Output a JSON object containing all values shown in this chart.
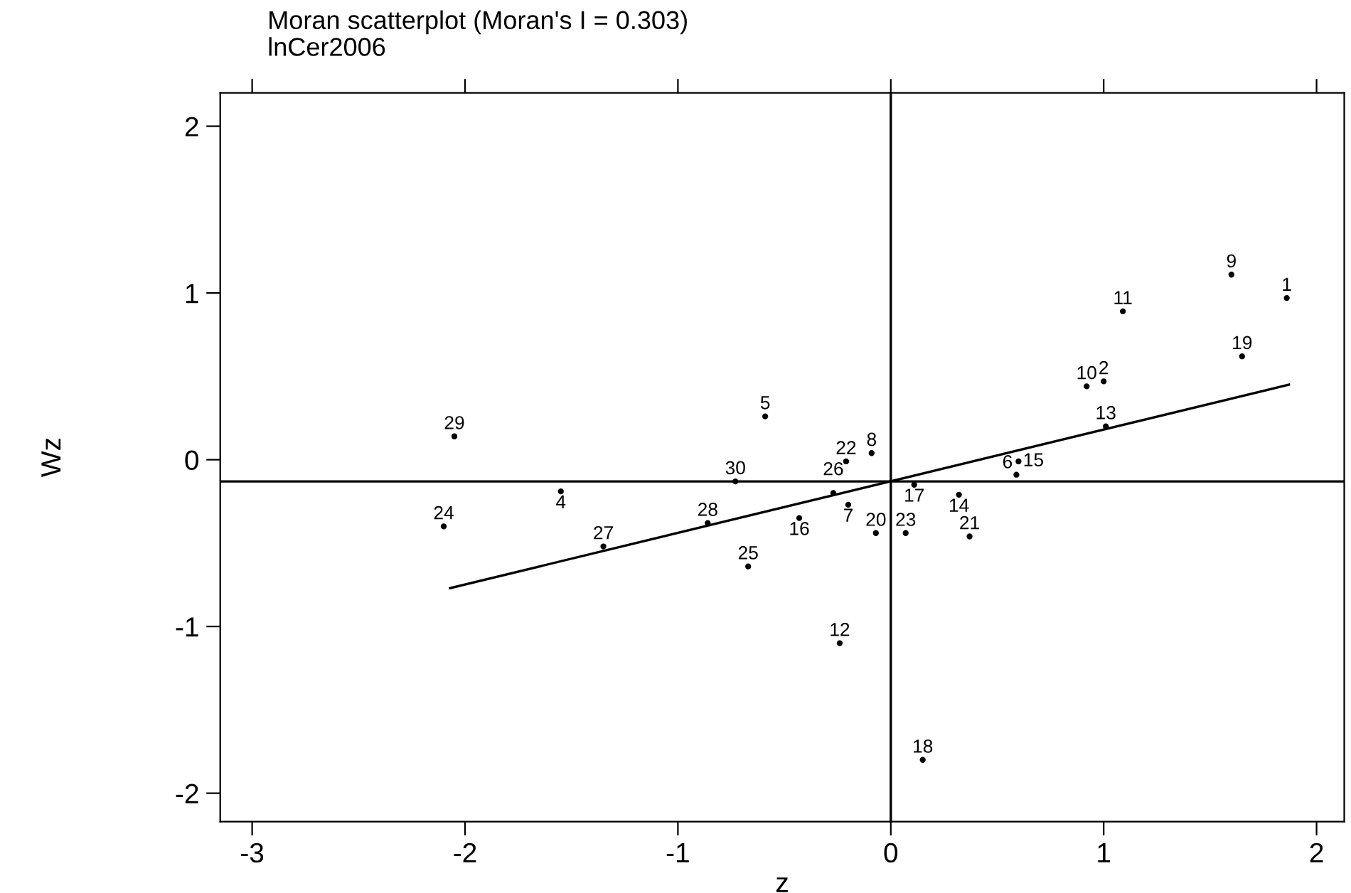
{
  "chart_data": {
    "type": "scatter",
    "title": "Moran scatterplot (Moran's I = 0.303)",
    "subtitle": "lnCer2006",
    "xlabel": "z",
    "ylabel": "Wz",
    "grid": false,
    "xlim": [
      -3.15,
      2.13
    ],
    "ylim": [
      -2.17,
      2.2
    ],
    "xticks": [
      -3,
      -2,
      -1,
      0,
      1,
      2
    ],
    "yticks": [
      -2,
      -1,
      0,
      1,
      2
    ],
    "series": [
      {
        "marker": "circle",
        "color": "#000000",
        "x": [
          1.86,
          1.0,
          -1.55,
          -0.59,
          0.59,
          -0.2,
          -0.09,
          1.6,
          0.92,
          1.09,
          -0.24,
          1.01,
          0.32,
          0.6,
          -0.43,
          0.11,
          0.15,
          1.65,
          -0.07,
          0.37,
          -0.21,
          0.07,
          -2.1,
          -0.67,
          -0.27,
          -1.35,
          -0.86,
          -2.05,
          -0.73
        ],
        "values": [
          0.97,
          0.47,
          -0.19,
          0.26,
          -0.09,
          -0.27,
          0.04,
          1.11,
          0.44,
          0.89,
          -1.1,
          0.2,
          -0.21,
          -0.01,
          -0.35,
          -0.15,
          -1.8,
          0.62,
          -0.44,
          -0.46,
          -0.01,
          -0.44,
          -0.4,
          -0.64,
          -0.2,
          -0.52,
          -0.38,
          0.14,
          -0.13
        ]
      },
      {
        "type": "line",
        "color": "#000000",
        "x": [
          -2.07,
          1.87
        ],
        "values": [
          -0.77,
          0.45
        ]
      }
    ],
    "annotations": [
      {
        "text": "1",
        "x": 1.86,
        "y": 0.97
      },
      {
        "text": "2",
        "x": 1.0,
        "y": 0.47
      },
      {
        "text": "4",
        "x": -1.55,
        "y": -0.19
      },
      {
        "text": "5",
        "x": -0.59,
        "y": 0.26
      },
      {
        "text": "6",
        "x": 0.59,
        "y": -0.09
      },
      {
        "text": "7",
        "x": -0.2,
        "y": -0.27
      },
      {
        "text": "8",
        "x": -0.09,
        "y": 0.04
      },
      {
        "text": "9",
        "x": 1.6,
        "y": 1.11
      },
      {
        "text": "10",
        "x": 0.92,
        "y": 0.44
      },
      {
        "text": "11",
        "x": 1.09,
        "y": 0.89
      },
      {
        "text": "12",
        "x": -0.24,
        "y": -1.1
      },
      {
        "text": "13",
        "x": 1.01,
        "y": 0.2
      },
      {
        "text": "14",
        "x": 0.32,
        "y": -0.21
      },
      {
        "text": "15",
        "x": 0.6,
        "y": -0.01
      },
      {
        "text": "16",
        "x": -0.43,
        "y": -0.35
      },
      {
        "text": "17",
        "x": 0.11,
        "y": -0.15
      },
      {
        "text": "18",
        "x": 0.15,
        "y": -1.8
      },
      {
        "text": "19",
        "x": 1.65,
        "y": 0.62
      },
      {
        "text": "20",
        "x": -0.07,
        "y": -0.44
      },
      {
        "text": "21",
        "x": 0.37,
        "y": -0.46
      },
      {
        "text": "22",
        "x": -0.21,
        "y": -0.01
      },
      {
        "text": "23",
        "x": 0.07,
        "y": -0.44
      },
      {
        "text": "24",
        "x": -2.1,
        "y": -0.4
      },
      {
        "text": "25",
        "x": -0.67,
        "y": -0.64
      },
      {
        "text": "26",
        "x": -0.27,
        "y": -0.2
      },
      {
        "text": "27",
        "x": -1.35,
        "y": -0.52
      },
      {
        "text": "28",
        "x": -0.86,
        "y": -0.38
      },
      {
        "text": "29",
        "x": -2.05,
        "y": 0.14
      },
      {
        "text": "30",
        "x": -0.73,
        "y": -0.13
      }
    ],
    "ref_lines": [
      {
        "axis": "y",
        "value": -0.13,
        "color": "#000000"
      },
      {
        "axis": "x",
        "value": 0,
        "color": "#000000"
      }
    ]
  }
}
